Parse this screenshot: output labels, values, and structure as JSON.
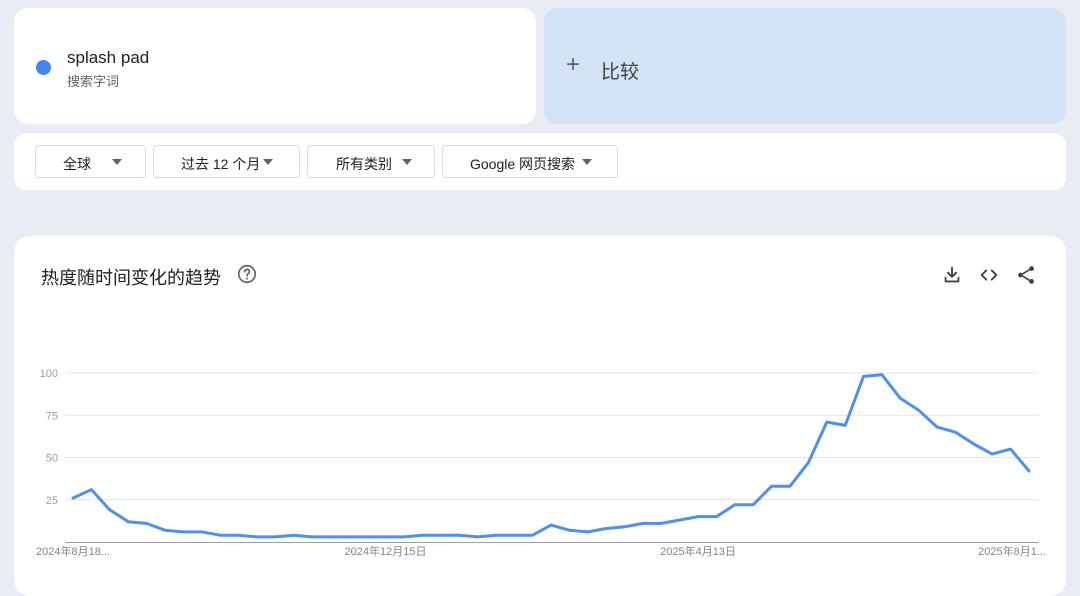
{
  "term": {
    "name": "splash pad",
    "type": "搜索字词",
    "color": "#4285f4"
  },
  "compare": {
    "plus_icon": "+",
    "label": "比较",
    "bg_color": "#d3e2f4"
  },
  "filters": [
    {
      "label": "全球"
    },
    {
      "label": "过去 12 个月"
    },
    {
      "label": "所有类别"
    },
    {
      "label": "Google 网页搜索"
    }
  ],
  "chart_section": {
    "title": "热度随时间变化的趋势",
    "icons": [
      "help-icon",
      "download-icon",
      "embed-code-icon",
      "share-icon"
    ]
  },
  "chart_data": {
    "type": "line",
    "title": "",
    "xlabel": "",
    "ylabel": "",
    "ylim": [
      0,
      100
    ],
    "yticks": [
      25,
      50,
      75,
      100
    ],
    "x_tick_labels": [
      "2024年8月18...",
      "2024年12月15日",
      "2025年4月13日",
      "2025年8月1..."
    ],
    "x_tick_indices": [
      0,
      17,
      34,
      52
    ],
    "grid": true,
    "series": [
      {
        "color": "#4e8ff0",
        "values": [
          26,
          31,
          19,
          12,
          11,
          7,
          6,
          6,
          4,
          4,
          3,
          3,
          4,
          3,
          3,
          3,
          3,
          3,
          3,
          4,
          4,
          4,
          3,
          4,
          4,
          4,
          10,
          7,
          6,
          8,
          9,
          11,
          11,
          13,
          15,
          15,
          22,
          22,
          33,
          33,
          47,
          71,
          69,
          98,
          99,
          85,
          78,
          68,
          65,
          58,
          52,
          55,
          42
        ]
      }
    ]
  }
}
